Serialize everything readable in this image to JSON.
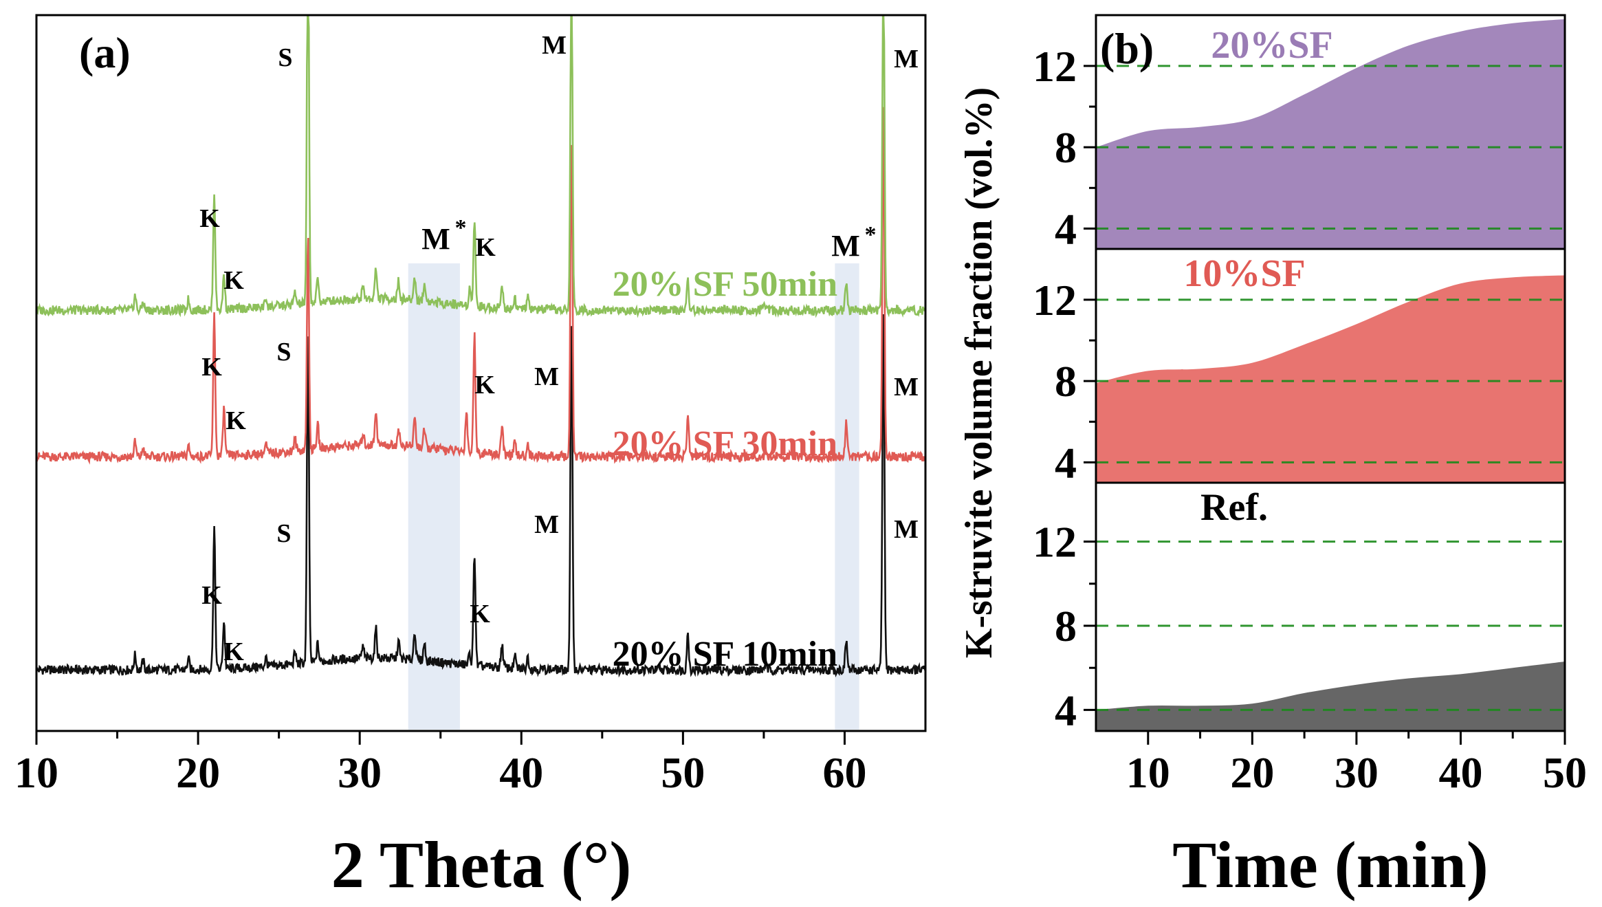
{
  "chart_data": [
    {
      "panel_label": "(a)",
      "type": "line",
      "title": "",
      "xlabel": "2 Theta (°)",
      "ylabel": "",
      "xlim": [
        10,
        65
      ],
      "xticks": [
        10,
        20,
        30,
        40,
        50,
        60
      ],
      "grid": false,
      "highlight_bands": [
        [
          33.0,
          36.2
        ],
        [
          59.4,
          60.9
        ]
      ],
      "series": [
        {
          "name": "20% SF 10min",
          "color": "#111111",
          "offset": 0,
          "base": 3.0,
          "peaks": [
            {
              "x": 16.1,
              "h": 2.5
            },
            {
              "x": 16.6,
              "h": 1.5
            },
            {
              "x": 19.4,
              "h": 1.8
            },
            {
              "x": 21.0,
              "h": 24
            },
            {
              "x": 21.6,
              "h": 8
            },
            {
              "x": 24.2,
              "h": 1.5
            },
            {
              "x": 26.0,
              "h": 2
            },
            {
              "x": 26.8,
              "h": 56
            },
            {
              "x": 27.4,
              "h": 3
            },
            {
              "x": 30.2,
              "h": 2
            },
            {
              "x": 31.0,
              "h": 5
            },
            {
              "x": 32.4,
              "h": 3
            },
            {
              "x": 33.4,
              "h": 5
            },
            {
              "x": 34.0,
              "h": 3
            },
            {
              "x": 36.8,
              "h": 2
            },
            {
              "x": 37.1,
              "h": 19
            },
            {
              "x": 38.8,
              "h": 4
            },
            {
              "x": 39.6,
              "h": 2
            },
            {
              "x": 40.4,
              "h": 2
            },
            {
              "x": 43.1,
              "h": 60
            },
            {
              "x": 50.3,
              "h": 6
            },
            {
              "x": 55.1,
              "h": 1
            },
            {
              "x": 60.1,
              "h": 5
            },
            {
              "x": 62.4,
              "h": 60
            }
          ]
        },
        {
          "name": "20% SF 30min",
          "color": "#e05a54",
          "offset": 1,
          "base": 3.0,
          "peaks": [
            {
              "x": 16.1,
              "h": 2.5
            },
            {
              "x": 16.6,
              "h": 1.5
            },
            {
              "x": 19.4,
              "h": 1.8
            },
            {
              "x": 21.0,
              "h": 24
            },
            {
              "x": 21.6,
              "h": 8
            },
            {
              "x": 24.2,
              "h": 1.5
            },
            {
              "x": 26.0,
              "h": 2
            },
            {
              "x": 26.8,
              "h": 36
            },
            {
              "x": 27.4,
              "h": 4
            },
            {
              "x": 30.2,
              "h": 2
            },
            {
              "x": 31.0,
              "h": 6
            },
            {
              "x": 32.4,
              "h": 3
            },
            {
              "x": 33.4,
              "h": 5
            },
            {
              "x": 34.0,
              "h": 3
            },
            {
              "x": 36.6,
              "h": 7
            },
            {
              "x": 37.1,
              "h": 20
            },
            {
              "x": 38.8,
              "h": 5
            },
            {
              "x": 39.6,
              "h": 2
            },
            {
              "x": 40.4,
              "h": 2
            },
            {
              "x": 43.1,
              "h": 55
            },
            {
              "x": 50.3,
              "h": 7
            },
            {
              "x": 55.1,
              "h": 1
            },
            {
              "x": 60.1,
              "h": 6
            },
            {
              "x": 62.4,
              "h": 60
            }
          ]
        },
        {
          "name": "20% SF 50min",
          "color": "#8dc05a",
          "offset": 2,
          "base": 3.0,
          "peaks": [
            {
              "x": 16.1,
              "h": 2.5
            },
            {
              "x": 16.6,
              "h": 1.5
            },
            {
              "x": 19.4,
              "h": 1.8
            },
            {
              "x": 21.0,
              "h": 20
            },
            {
              "x": 21.6,
              "h": 6
            },
            {
              "x": 24.2,
              "h": 1.5
            },
            {
              "x": 26.0,
              "h": 2
            },
            {
              "x": 26.8,
              "h": 66
            },
            {
              "x": 27.4,
              "h": 4
            },
            {
              "x": 30.2,
              "h": 2
            },
            {
              "x": 31.0,
              "h": 5
            },
            {
              "x": 32.4,
              "h": 3
            },
            {
              "x": 33.4,
              "h": 4
            },
            {
              "x": 34.0,
              "h": 3
            },
            {
              "x": 36.8,
              "h": 3
            },
            {
              "x": 37.1,
              "h": 15
            },
            {
              "x": 38.8,
              "h": 4
            },
            {
              "x": 39.6,
              "h": 2
            },
            {
              "x": 40.4,
              "h": 2
            },
            {
              "x": 43.1,
              "h": 60
            },
            {
              "x": 50.3,
              "h": 5
            },
            {
              "x": 55.1,
              "h": 1
            },
            {
              "x": 60.1,
              "h": 5
            },
            {
              "x": 62.4,
              "h": 60
            }
          ]
        }
      ],
      "annotations": [
        {
          "text": "K",
          "x": 21.0,
          "series": 2
        },
        {
          "text": "K",
          "x": 21.7,
          "series": 2
        },
        {
          "text": "S",
          "x": 25.8,
          "series": 2
        },
        {
          "text": "M",
          "x": 42.6,
          "series": 2
        },
        {
          "text": "K",
          "x": 37.6,
          "series": 2
        },
        {
          "text": "M",
          "x": 63.6,
          "series": 2
        },
        {
          "text": "K",
          "x": 21.0,
          "series": 1
        },
        {
          "text": "K",
          "x": 21.7,
          "series": 1
        },
        {
          "text": "S",
          "x": 25.8,
          "series": 1
        },
        {
          "text": "K",
          "x": 37.6,
          "series": 1
        },
        {
          "text": "M",
          "x": 41.5,
          "series": 1
        },
        {
          "text": "M",
          "x": 63.6,
          "series": 1
        },
        {
          "text": "S",
          "x": 25.8,
          "series": 0
        },
        {
          "text": "K",
          "x": 21.0,
          "series": 0
        },
        {
          "text": "K",
          "x": 21.7,
          "series": 0
        },
        {
          "text": "K",
          "x": 37.0,
          "series": 0
        },
        {
          "text": "M",
          "x": 41.5,
          "series": 0
        },
        {
          "text": "M",
          "x": 63.6,
          "series": 0
        }
      ],
      "band_labels": [
        {
          "text": "M",
          "sup": "*",
          "x": 34.6
        },
        {
          "text": "M",
          "sup": "*",
          "x": 60.0
        }
      ]
    },
    {
      "panel_label": "(b)",
      "type": "area",
      "title": "",
      "xlabel": "Time (min)",
      "ylabel": "K-struvite volume fraction (vol.%)",
      "xlim": [
        5,
        50
      ],
      "xticks": [
        10,
        20,
        30,
        40,
        50
      ],
      "ylim": [
        3,
        14.5
      ],
      "yticks": [
        4,
        8,
        12
      ],
      "reference_lines": [
        4,
        8,
        12
      ],
      "x": [
        5,
        10,
        15,
        20,
        25,
        30,
        35,
        40,
        45,
        50
      ],
      "series": [
        {
          "name": "Ref.",
          "color": "#666666",
          "values": [
            4.0,
            4.2,
            4.2,
            4.3,
            4.8,
            5.2,
            5.5,
            5.7,
            6.0,
            6.3
          ]
        },
        {
          "name": "10%SF",
          "color": "#e87470",
          "values": [
            7.9,
            8.5,
            8.6,
            8.9,
            9.8,
            10.8,
            11.9,
            12.8,
            13.1,
            13.2
          ]
        },
        {
          "name": "20%SF",
          "color": "#a387bb",
          "values": [
            8.0,
            8.8,
            9.0,
            9.4,
            10.6,
            11.9,
            13.0,
            13.7,
            14.1,
            14.3
          ]
        }
      ]
    }
  ]
}
